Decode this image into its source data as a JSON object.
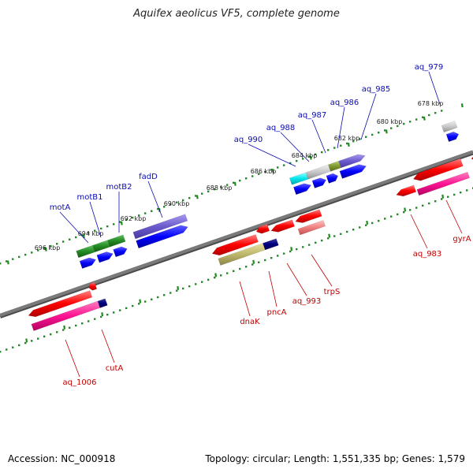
{
  "title": "Aquifex aeolicus VF5, complete genome",
  "footer": {
    "accession": "Accession: NC_000918",
    "summary": "Topology: circular; Length: 1,551,335 bp; Genes: 1,579"
  },
  "colors": {
    "backbone": "#7a7a7a",
    "ticks": "#1f8a1f",
    "top_label": "#0b0bb0",
    "bottom_label": "#c00000"
  },
  "kbp_ticks": [
    "678 kbp",
    "680 kbp",
    "682 kbp",
    "684 kbp",
    "686 kbp",
    "688 kbp",
    "690 kbp",
    "692 kbp",
    "694 kbp",
    "696 kbp"
  ],
  "top_genes": [
    "aq_979",
    "aq_985",
    "aq_986",
    "aq_987",
    "aq_988",
    "aq_990",
    "fadD",
    "motB2",
    "motB1",
    "motA"
  ],
  "bottom_genes": [
    "gyrA",
    "aq_983",
    "trpS",
    "aq_993",
    "pncA",
    "dnaK",
    "cutA",
    "aq_1006"
  ]
}
